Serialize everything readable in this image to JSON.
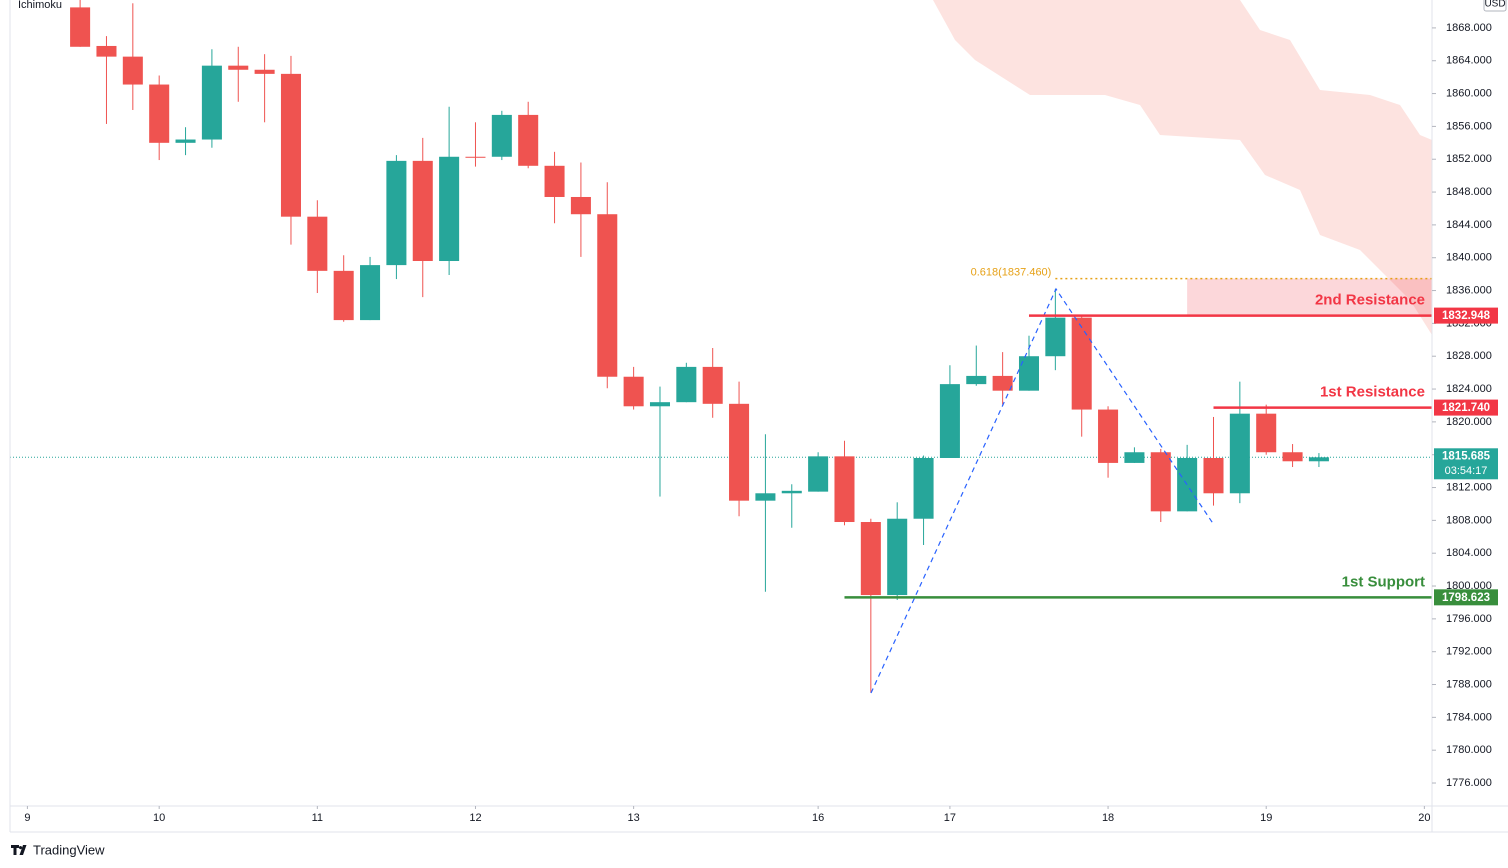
{
  "chart_data": {
    "type": "candlestick",
    "indicator": "Ichimoku",
    "currency": "USD",
    "footer": "TradingView",
    "ylim": [
      1773.2,
      1871.4
    ],
    "yticks": [
      {
        "value": 1776,
        "label": "1776.000"
      },
      {
        "value": 1780,
        "label": "1780.000"
      },
      {
        "value": 1784,
        "label": "1784.000"
      },
      {
        "value": 1788,
        "label": "1788.000"
      },
      {
        "value": 1792,
        "label": "1792.000"
      },
      {
        "value": 1796,
        "label": "1796.000"
      },
      {
        "value": 1800,
        "label": "1800.000"
      },
      {
        "value": 1804,
        "label": "1804.000"
      },
      {
        "value": 1808,
        "label": "1808.000"
      },
      {
        "value": 1812,
        "label": "1812.000"
      },
      {
        "value": 1816,
        "label": "1816.000"
      },
      {
        "value": 1820,
        "label": "1820.000"
      },
      {
        "value": 1824,
        "label": "1824.000"
      },
      {
        "value": 1828,
        "label": "1828.000"
      },
      {
        "value": 1832,
        "label": "1832.000"
      },
      {
        "value": 1836,
        "label": "1836.000"
      },
      {
        "value": 1840,
        "label": "1840.000"
      },
      {
        "value": 1844,
        "label": "1844.000"
      },
      {
        "value": 1848,
        "label": "1848.000"
      },
      {
        "value": 1852,
        "label": "1852.000"
      },
      {
        "value": 1856,
        "label": "1856.000"
      },
      {
        "value": 1860,
        "label": "1860.000"
      },
      {
        "value": 1864,
        "label": "1864.000"
      },
      {
        "value": 1868,
        "label": "1868.000"
      }
    ],
    "xlim": [
      -2.66,
      51.29
    ],
    "xticks": [
      {
        "value": -2,
        "label": "9"
      },
      {
        "value": 3,
        "label": "10"
      },
      {
        "value": 9,
        "label": "11"
      },
      {
        "value": 15,
        "label": "12"
      },
      {
        "value": 21,
        "label": "13"
      },
      {
        "value": 28,
        "label": "16"
      },
      {
        "value": 33,
        "label": "17"
      },
      {
        "value": 39,
        "label": "18"
      },
      {
        "value": 45,
        "label": "19"
      },
      {
        "value": 51,
        "label": "20"
      }
    ],
    "candles": {
      "up_color": "#26a69a",
      "down_color": "#ef5350",
      "open": [
        1870.5,
        1865.8,
        1864.5,
        1861.1,
        1854.0,
        1854.4,
        1863.4,
        1862.9,
        1862.4,
        1845.0,
        1838.4,
        1832.4,
        1839.1,
        1851.8,
        1839.6,
        1852.3,
        1852.3,
        1857.4,
        1851.2,
        1847.4,
        1845.3,
        1825.5,
        1821.9,
        1822.4,
        1826.7,
        1822.2,
        1810.4,
        1811.3,
        1811.5,
        1815.8,
        1807.8,
        1798.9,
        1808.2,
        1815.6,
        1824.6,
        1825.6,
        1823.8,
        1828.0,
        1832.7,
        1821.5,
        1815.0,
        1816.3,
        1809.1,
        1815.6,
        1811.3,
        1821.0,
        1816.3,
        1815.2
      ],
      "high": [
        1871.4,
        1867.0,
        1871.0,
        1862.2,
        1855.9,
        1865.4,
        1865.7,
        1864.8,
        1864.6,
        1847.0,
        1840.3,
        1840.1,
        1852.5,
        1854.6,
        1858.4,
        1856.5,
        1857.9,
        1859.0,
        1852.9,
        1851.6,
        1849.2,
        1826.7,
        1824.3,
        1827.2,
        1829.0,
        1824.9,
        1818.5,
        1812.4,
        1816.3,
        1817.7,
        1808.2,
        1810.2,
        1815.9,
        1826.9,
        1829.3,
        1828.5,
        1830.5,
        1836.2,
        1832.9,
        1821.9,
        1816.9,
        1816.7,
        1817.2,
        1820.6,
        1824.9,
        1822.1,
        1817.3,
        1816.2
      ],
      "low": [
        1865.7,
        1856.3,
        1858.0,
        1851.9,
        1852.5,
        1853.4,
        1859.0,
        1856.5,
        1841.6,
        1835.7,
        1832.2,
        1832.4,
        1837.4,
        1835.2,
        1837.9,
        1851.1,
        1851.9,
        1850.9,
        1844.2,
        1840.1,
        1824.1,
        1821.5,
        1810.9,
        1822.4,
        1820.5,
        1808.5,
        1799.3,
        1807.1,
        1811.5,
        1807.4,
        1787.0,
        1798.3,
        1805.0,
        1815.6,
        1824.4,
        1822.1,
        1823.8,
        1826.3,
        1818.2,
        1813.2,
        1815.0,
        1807.8,
        1809.1,
        1809.8,
        1810.1,
        1816.0,
        1814.5,
        1814.5
      ],
      "close": [
        1865.7,
        1864.5,
        1861.1,
        1854.0,
        1854.4,
        1863.4,
        1862.9,
        1862.4,
        1845.0,
        1838.4,
        1832.4,
        1839.1,
        1851.8,
        1839.6,
        1852.3,
        1852.2,
        1857.4,
        1851.2,
        1847.4,
        1845.3,
        1825.5,
        1821.9,
        1822.4,
        1826.7,
        1822.2,
        1810.4,
        1811.3,
        1811.6,
        1815.8,
        1807.8,
        1798.9,
        1808.2,
        1815.6,
        1824.6,
        1825.6,
        1823.8,
        1828.0,
        1832.7,
        1821.5,
        1815.0,
        1816.3,
        1809.1,
        1815.6,
        1811.3,
        1821.0,
        1816.3,
        1815.2,
        1815.685
      ]
    },
    "levels": [
      {
        "name": "2nd Resistance",
        "value": 1832.948,
        "label": "1832.948",
        "color": "#f23645",
        "start": 36
      },
      {
        "name": "1st Resistance",
        "value": 1821.74,
        "label": "1821.740",
        "color": "#f23645",
        "start": 43
      },
      {
        "name": "1st Support",
        "value": 1798.623,
        "label": "1798.623",
        "color": "#388e3c",
        "start": 29
      }
    ],
    "fib": {
      "label": "0.618(1837.460)",
      "value": 1837.46,
      "color": "#e6a117",
      "start": 37,
      "zone_start": 42
    },
    "last_price": {
      "value": 1815.685,
      "label": "1815.685",
      "countdown": "03:54:17",
      "color": "#26a69a"
    }
  }
}
